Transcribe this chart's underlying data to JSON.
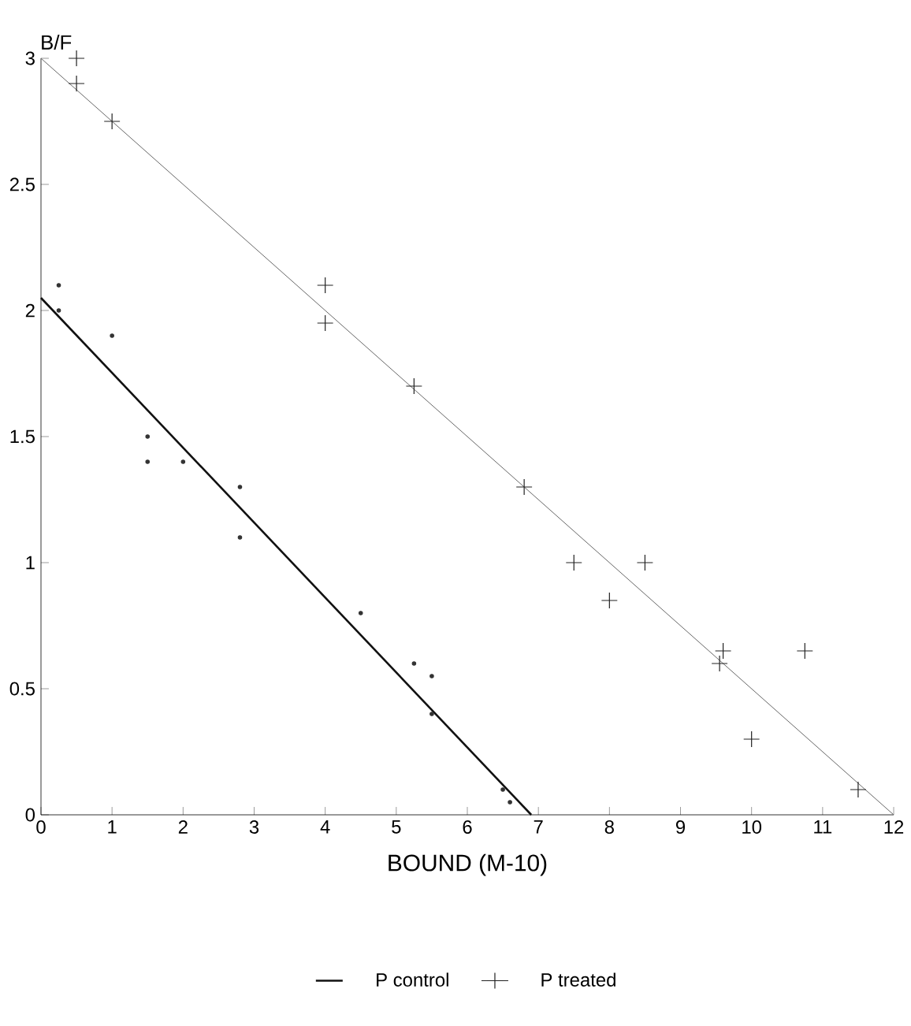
{
  "chart_data": {
    "type": "scatter",
    "xlabel": "BOUND (M-10)",
    "ylabel": "B/F",
    "xlim": [
      0,
      12
    ],
    "ylim": [
      0,
      3
    ],
    "xticks": [
      0,
      1,
      2,
      3,
      4,
      5,
      6,
      7,
      8,
      9,
      10,
      11,
      12
    ],
    "yticks": [
      0,
      0.5,
      1,
      1.5,
      2,
      2.5,
      3
    ],
    "grid": false,
    "legend": "bottom",
    "series": [
      {
        "type": "line",
        "name": "P control",
        "color": "#111111",
        "x": [
          0,
          6.9
        ],
        "values": [
          2.05,
          0
        ],
        "marker": "none",
        "line_style": "solid"
      },
      {
        "color": "#333333",
        "x": [
          0.25,
          0.25,
          1,
          1.5,
          1.5,
          2,
          2.8,
          2.8,
          4.5,
          5.25,
          5.5,
          5.5,
          6.5,
          6.6
        ],
        "values": [
          2.1,
          2.0,
          1.9,
          1.5,
          1.4,
          1.4,
          1.3,
          1.1,
          0.8,
          0.6,
          0.55,
          0.4,
          0.1,
          0.05
        ],
        "marker": "circle"
      },
      {
        "type": "line",
        "color": "#666666",
        "x": [
          0,
          12
        ],
        "values": [
          3.0,
          0
        ],
        "marker": "none",
        "line_style": "solid"
      },
      {
        "name": "P treated",
        "color": "#222222",
        "x": [
          0.5,
          0.5,
          1,
          4,
          4,
          5.25,
          6.8,
          7.5,
          8,
          8.5,
          9.55,
          9.6,
          10,
          10.75,
          11.5
        ],
        "values": [
          3.0,
          2.9,
          2.75,
          2.1,
          1.95,
          1.7,
          1.3,
          1.0,
          0.85,
          1.0,
          0.6,
          0.65,
          0.3,
          0.65,
          0.1
        ],
        "marker": "cross"
      }
    ]
  }
}
